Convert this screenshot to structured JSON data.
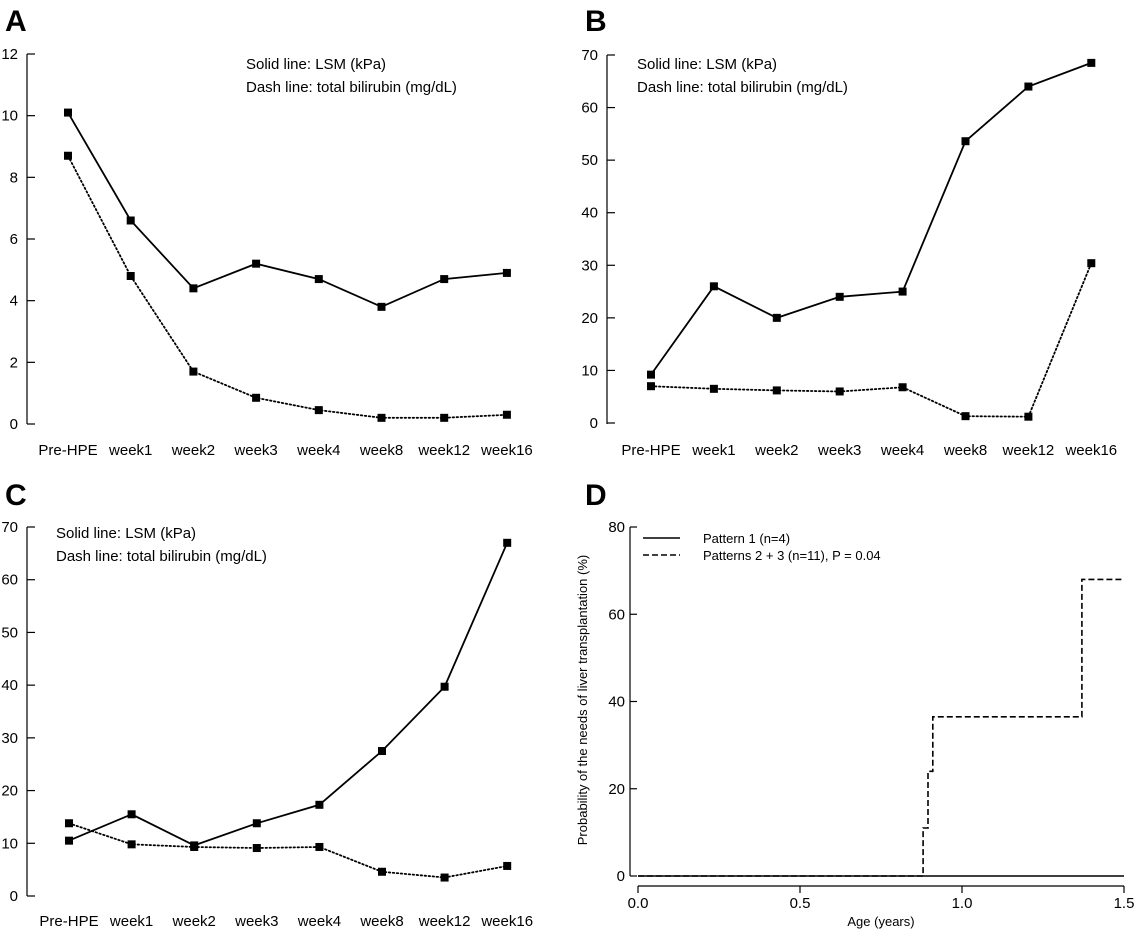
{
  "chart_data": [
    {
      "panel": "A",
      "type": "line",
      "categories": [
        "Pre-HPE",
        "week1",
        "week2",
        "week3",
        "week4",
        "week8",
        "week12",
        "week16"
      ],
      "ylim": [
        0,
        12
      ],
      "yticks": [
        0,
        2,
        4,
        6,
        8,
        10,
        12
      ],
      "annotations": [
        "Solid line: LSM (kPa)",
        "Dash line: total bilirubin (mg/dL)"
      ],
      "series": [
        {
          "name": "LSM (kPa)",
          "style": "solid",
          "values": [
            10.1,
            6.6,
            4.4,
            5.2,
            4.7,
            3.8,
            4.7,
            4.9
          ]
        },
        {
          "name": "total bilirubin (mg/dL)",
          "style": "dotted",
          "values": [
            8.7,
            4.8,
            1.7,
            0.85,
            0.45,
            0.2,
            0.2,
            0.3
          ]
        }
      ]
    },
    {
      "panel": "B",
      "type": "line",
      "categories": [
        "Pre-HPE",
        "week1",
        "week2",
        "week3",
        "week4",
        "week8",
        "week12",
        "week16"
      ],
      "ylim": [
        0,
        70
      ],
      "yticks": [
        0,
        10,
        20,
        30,
        40,
        50,
        60,
        70
      ],
      "annotations": [
        "Solid line: LSM (kPa)",
        "Dash line: total bilirubin (mg/dL)"
      ],
      "series": [
        {
          "name": "LSM (kPa)",
          "style": "solid",
          "values": [
            9.2,
            26,
            20,
            24,
            25,
            53.6,
            64,
            68.5
          ]
        },
        {
          "name": "total bilirubin (mg/dL)",
          "style": "dotted",
          "values": [
            7,
            6.5,
            6.2,
            6,
            6.8,
            1.3,
            1.2,
            30.4
          ]
        }
      ]
    },
    {
      "panel": "C",
      "type": "line",
      "categories": [
        "Pre-HPE",
        "week1",
        "week2",
        "week3",
        "week4",
        "week8",
        "week12",
        "week16"
      ],
      "ylim": [
        0,
        70
      ],
      "yticks": [
        0,
        10,
        20,
        30,
        40,
        50,
        60,
        70
      ],
      "annotations": [
        "Solid line: LSM (kPa)",
        "Dash line: total bilirubin (mg/dL)"
      ],
      "series": [
        {
          "name": "LSM (kPa)",
          "style": "solid",
          "values": [
            10.5,
            15.5,
            9.6,
            13.8,
            17.3,
            27.5,
            39.7,
            67
          ]
        },
        {
          "name": "total bilirubin (mg/dL)",
          "style": "dotted",
          "values": [
            13.8,
            9.8,
            9.3,
            9.1,
            9.3,
            4.6,
            3.5,
            5.7
          ]
        }
      ]
    },
    {
      "panel": "D",
      "type": "line",
      "xlabel": "Age (years)",
      "ylabel": "Probability of the needs of liver transplantation (%)",
      "xlim": [
        0,
        1.5
      ],
      "ylim": [
        0,
        80
      ],
      "xticks": [
        "0.0",
        "0.5",
        "1.0",
        "1.5"
      ],
      "xtick_values": [
        0,
        0.5,
        1.0,
        1.5
      ],
      "yticks": [
        0,
        20,
        40,
        60,
        80
      ],
      "legend_position": "top-left",
      "series": [
        {
          "name": "Pattern 1 (n=4)",
          "style": "solid",
          "step": true,
          "x": [
            0,
            1.5
          ],
          "y": [
            0,
            0
          ]
        },
        {
          "name": "Patterns 2 + 3 (n=11), P = 0.04",
          "style": "dashed",
          "step": true,
          "x": [
            0,
            0.88,
            0.895,
            0.91,
            1.37,
            1.5
          ],
          "y": [
            0,
            11,
            24,
            36.5,
            68,
            68
          ]
        }
      ]
    }
  ]
}
